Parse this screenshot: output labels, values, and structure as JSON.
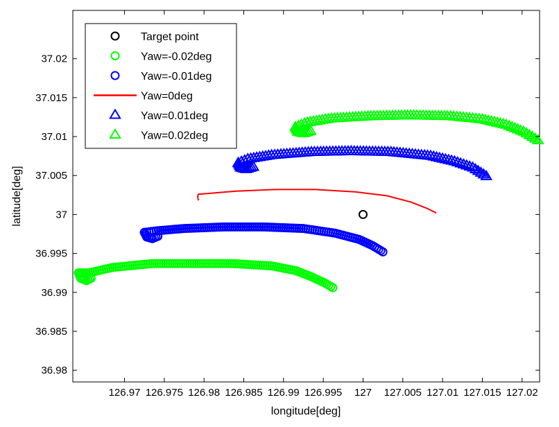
{
  "chart_data": {
    "type": "scatter",
    "title": "",
    "xlabel": "longitude[deg]",
    "ylabel": "latitude[deg]",
    "xlim": [
      126.9635,
      127.0222
    ],
    "ylim": [
      36.9785,
      37.0262
    ],
    "x_ticks": [
      126.97,
      126.975,
      126.98,
      126.985,
      126.99,
      126.995,
      127.0,
      127.005,
      127.01,
      127.015,
      127.02
    ],
    "x_tick_labels": [
      "126.97",
      "126.975",
      "126.98",
      "126.985",
      "126.99",
      "126.995",
      "127",
      "127.005",
      "127.01",
      "127.015",
      "127.02"
    ],
    "y_ticks": [
      36.98,
      36.985,
      36.99,
      36.995,
      37.0,
      37.005,
      37.01,
      37.015,
      37.02
    ],
    "y_tick_labels": [
      "36.98",
      "36.985",
      "36.99",
      "36.995",
      "37",
      "37.005",
      "37.01",
      "37.015",
      "37.02"
    ],
    "grid": false,
    "legend_position": "top-left",
    "series": [
      {
        "name": "Target point",
        "marker": "circle",
        "color": "#000000",
        "x": [
          127.0
        ],
        "y": [
          37.0
        ]
      },
      {
        "name": "Yaw=-0.02deg",
        "marker": "circle",
        "color": "#00ff00",
        "x": [
          126.9642,
          126.9655,
          126.9685,
          126.9735,
          126.9785,
          126.9835,
          126.9885,
          126.9915,
          126.9935,
          126.9952,
          126.9962
        ],
        "y": [
          36.9925,
          36.9925,
          36.9932,
          36.9937,
          36.9937,
          36.9937,
          36.9934,
          36.9928,
          36.992,
          36.9912,
          36.9906
        ],
        "hook": {
          "x": [
            126.9642,
            126.9645,
            126.9652,
            126.9658
          ],
          "y": [
            36.9925,
            36.9918,
            36.9915,
            36.9918
          ]
        }
      },
      {
        "name": "Yaw=-0.01deg",
        "marker": "circle",
        "color": "#0000ff",
        "x": [
          126.9725,
          126.974,
          126.9775,
          126.9825,
          126.9875,
          126.9925,
          126.9965,
          126.9995,
          127.0012,
          127.0025
        ],
        "y": [
          36.9977,
          36.9979,
          36.9982,
          36.9984,
          36.9984,
          36.9982,
          36.9976,
          36.9968,
          36.996,
          36.9952
        ],
        "hook": {
          "x": [
            126.9725,
            126.9728,
            126.9735,
            126.9742
          ],
          "y": [
            36.9977,
            36.9971,
            36.9969,
            36.9972
          ]
        }
      },
      {
        "name": "Yaw=0deg",
        "marker": "line",
        "color": "#ff0000",
        "x": [
          126.9793,
          126.9792,
          126.9793,
          126.9805,
          126.984,
          126.989,
          126.994,
          126.999,
          127.003,
          127.006,
          127.008,
          127.0092
        ],
        "y": [
          37.0018,
          37.0023,
          37.0026,
          37.0027,
          37.003,
          37.0032,
          37.0032,
          37.0029,
          37.0024,
          37.0016,
          37.0008,
          37.0002
        ]
      },
      {
        "name": "Yaw=0.01deg",
        "marker": "triangle",
        "color": "#0000ff",
        "x": [
          126.9843,
          126.9855,
          126.9885,
          126.9935,
          126.9985,
          127.0035,
          127.0085,
          127.0115,
          127.0138,
          127.0155
        ],
        "y": [
          37.0066,
          37.0071,
          37.0076,
          37.008,
          37.0081,
          37.008,
          37.0075,
          37.0068,
          37.006,
          37.0049
        ],
        "hook": {
          "x": [
            126.9843,
            126.9846,
            126.9853,
            126.9862
          ],
          "y": [
            37.0066,
            37.006,
            37.0058,
            37.0061
          ]
        }
      },
      {
        "name": "Yaw=0.02deg",
        "marker": "triangle",
        "color": "#00ff00",
        "x": [
          126.9915,
          126.993,
          126.996,
          127.001,
          127.006,
          127.011,
          127.015,
          127.018,
          127.0202,
          127.022
        ],
        "y": [
          37.0112,
          37.0118,
          37.0123,
          37.0126,
          37.0127,
          37.0126,
          37.0122,
          37.0115,
          37.0106,
          37.0095
        ],
        "hook": {
          "x": [
            126.9915,
            126.9918,
            126.9925,
            126.9934
          ],
          "y": [
            37.0112,
            37.0106,
            37.0104,
            37.0107
          ]
        }
      }
    ]
  }
}
